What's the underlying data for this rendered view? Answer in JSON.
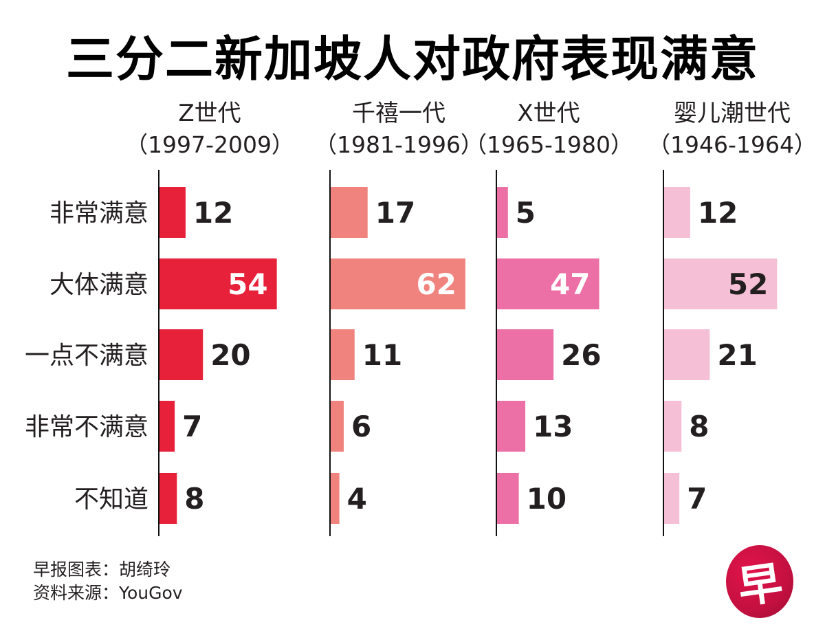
{
  "header": {
    "title": "三分二新加坡人对政府表现满意"
  },
  "chart_data": {
    "type": "bar",
    "orientation": "horizontal",
    "title": "三分二新加坡人对政府表现满意",
    "unit": "%",
    "categories": [
      "非常满意",
      "大体满意",
      "一点不满意",
      "非常不满意",
      "不知道"
    ],
    "xlim": [
      0,
      65
    ],
    "grid": false,
    "panels": [
      {
        "name": "Z世代",
        "years": "（1997-2009）",
        "color": "#e8213a",
        "label_inside_color": "#ffffff",
        "values": [
          12,
          54,
          20,
          7,
          8
        ]
      },
      {
        "name": "千禧一代",
        "years": "（1981-1996）",
        "color": "#f0837d",
        "label_inside_color": "#ffffff",
        "values": [
          17,
          62,
          11,
          6,
          4
        ]
      },
      {
        "name": "X世代",
        "years": "（1965-1980）",
        "color": "#ec6fa6",
        "label_inside_color": "#ffffff",
        "values": [
          5,
          47,
          26,
          13,
          10
        ]
      },
      {
        "name": "婴儿潮世代",
        "years": "（1946-1964）",
        "color": "#f5bfd5",
        "label_inside_color": "#231f20",
        "values": [
          12,
          52,
          21,
          8,
          7
        ]
      }
    ]
  },
  "footer": {
    "credit": "早报图表：胡绮玲",
    "source": "资料来源：YouGov",
    "logo_glyph": "早"
  }
}
